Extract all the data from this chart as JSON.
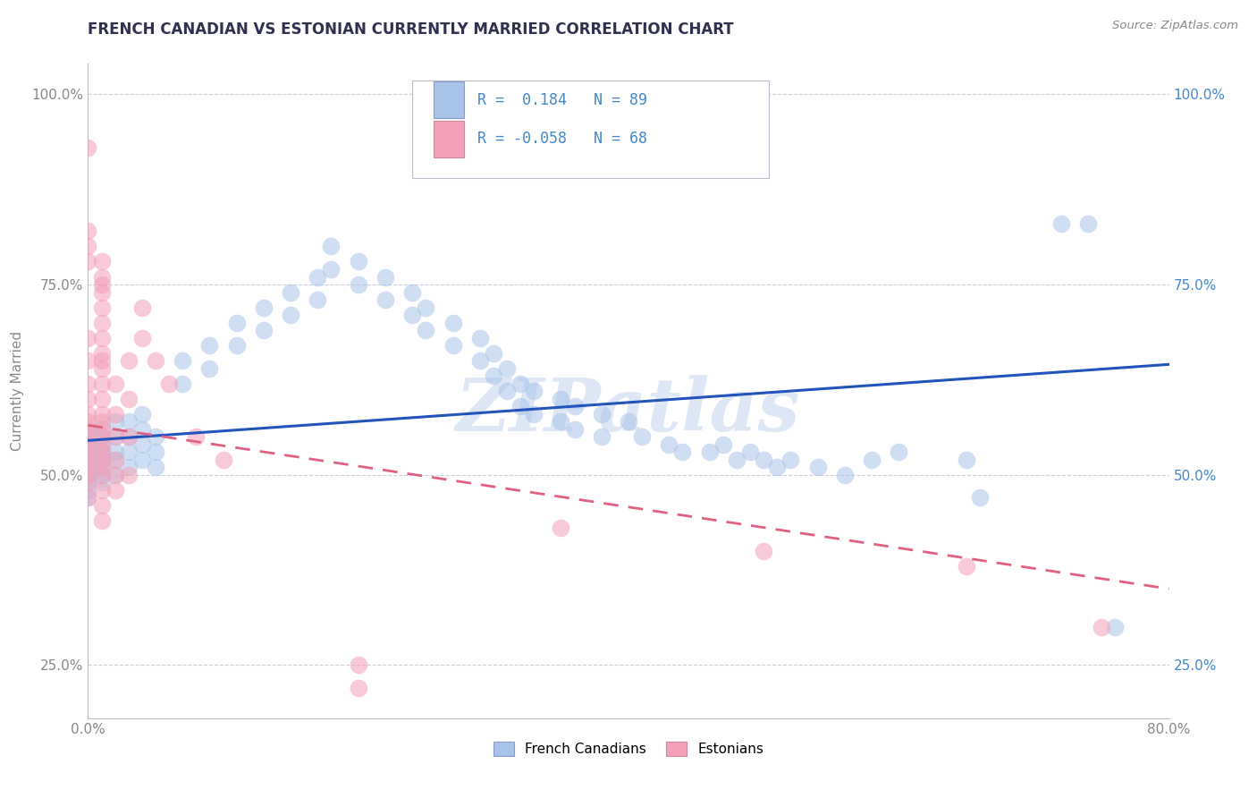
{
  "title": "FRENCH CANADIAN VS ESTONIAN CURRENTLY MARRIED CORRELATION CHART",
  "source_text": "Source: ZipAtlas.com",
  "ylabel": "Currently Married",
  "ytick_vals": [
    0.25,
    0.5,
    0.75,
    1.0
  ],
  "ytick_labels": [
    "25.0%",
    "50.0%",
    "75.0%",
    "100.0%"
  ],
  "xtick_vals": [
    0.0,
    0.8
  ],
  "xtick_labels": [
    "0.0%",
    "80.0%"
  ],
  "xmin": 0.0,
  "xmax": 0.8,
  "ymin": 0.18,
  "ymax": 1.04,
  "blue_fill": "#a8c4e8",
  "pink_fill": "#f4a0b8",
  "blue_line_color": "#2255bb",
  "pink_line_color": "#e06080",
  "legend_text_color": "#4488cc",
  "watermark": "ZIPatlas",
  "watermark_color": "#c8d8f0",
  "grid_color": "#ccccdd",
  "title_color": "#303050",
  "axis_color": "#888888",
  "blue_points": [
    [
      0.0,
      0.56
    ],
    [
      0.0,
      0.55
    ],
    [
      0.0,
      0.54
    ],
    [
      0.0,
      0.53
    ],
    [
      0.0,
      0.52
    ],
    [
      0.0,
      0.51
    ],
    [
      0.0,
      0.5
    ],
    [
      0.0,
      0.49
    ],
    [
      0.0,
      0.48
    ],
    [
      0.0,
      0.47
    ],
    [
      0.01,
      0.56
    ],
    [
      0.01,
      0.55
    ],
    [
      0.01,
      0.54
    ],
    [
      0.01,
      0.53
    ],
    [
      0.01,
      0.52
    ],
    [
      0.01,
      0.51
    ],
    [
      0.01,
      0.5
    ],
    [
      0.01,
      0.49
    ],
    [
      0.02,
      0.57
    ],
    [
      0.02,
      0.55
    ],
    [
      0.02,
      0.53
    ],
    [
      0.02,
      0.52
    ],
    [
      0.02,
      0.5
    ],
    [
      0.03,
      0.57
    ],
    [
      0.03,
      0.55
    ],
    [
      0.03,
      0.53
    ],
    [
      0.03,
      0.51
    ],
    [
      0.04,
      0.58
    ],
    [
      0.04,
      0.56
    ],
    [
      0.04,
      0.54
    ],
    [
      0.04,
      0.52
    ],
    [
      0.05,
      0.55
    ],
    [
      0.05,
      0.53
    ],
    [
      0.05,
      0.51
    ],
    [
      0.07,
      0.65
    ],
    [
      0.07,
      0.62
    ],
    [
      0.09,
      0.67
    ],
    [
      0.09,
      0.64
    ],
    [
      0.11,
      0.7
    ],
    [
      0.11,
      0.67
    ],
    [
      0.13,
      0.72
    ],
    [
      0.13,
      0.69
    ],
    [
      0.15,
      0.74
    ],
    [
      0.15,
      0.71
    ],
    [
      0.17,
      0.76
    ],
    [
      0.17,
      0.73
    ],
    [
      0.18,
      0.8
    ],
    [
      0.18,
      0.77
    ],
    [
      0.2,
      0.78
    ],
    [
      0.2,
      0.75
    ],
    [
      0.22,
      0.76
    ],
    [
      0.22,
      0.73
    ],
    [
      0.24,
      0.74
    ],
    [
      0.24,
      0.71
    ],
    [
      0.25,
      0.72
    ],
    [
      0.25,
      0.69
    ],
    [
      0.27,
      0.7
    ],
    [
      0.27,
      0.67
    ],
    [
      0.29,
      0.68
    ],
    [
      0.29,
      0.65
    ],
    [
      0.3,
      0.66
    ],
    [
      0.3,
      0.63
    ],
    [
      0.31,
      0.64
    ],
    [
      0.31,
      0.61
    ],
    [
      0.32,
      0.62
    ],
    [
      0.32,
      0.59
    ],
    [
      0.33,
      0.61
    ],
    [
      0.33,
      0.58
    ],
    [
      0.35,
      0.6
    ],
    [
      0.35,
      0.57
    ],
    [
      0.36,
      0.59
    ],
    [
      0.36,
      0.56
    ],
    [
      0.38,
      0.58
    ],
    [
      0.38,
      0.55
    ],
    [
      0.4,
      0.57
    ],
    [
      0.41,
      0.55
    ],
    [
      0.43,
      0.54
    ],
    [
      0.44,
      0.53
    ],
    [
      0.46,
      0.53
    ],
    [
      0.47,
      0.54
    ],
    [
      0.48,
      0.52
    ],
    [
      0.49,
      0.53
    ],
    [
      0.5,
      0.52
    ],
    [
      0.51,
      0.51
    ],
    [
      0.52,
      0.52
    ],
    [
      0.54,
      0.51
    ],
    [
      0.56,
      0.5
    ],
    [
      0.58,
      0.52
    ],
    [
      0.6,
      0.53
    ],
    [
      0.65,
      0.52
    ],
    [
      0.66,
      0.47
    ],
    [
      0.72,
      0.83
    ],
    [
      0.74,
      0.83
    ],
    [
      0.76,
      0.3
    ]
  ],
  "pink_points": [
    [
      0.0,
      0.93
    ],
    [
      0.0,
      0.82
    ],
    [
      0.0,
      0.8
    ],
    [
      0.0,
      0.78
    ],
    [
      0.01,
      0.78
    ],
    [
      0.01,
      0.76
    ],
    [
      0.01,
      0.75
    ],
    [
      0.01,
      0.74
    ],
    [
      0.01,
      0.72
    ],
    [
      0.01,
      0.7
    ],
    [
      0.0,
      0.68
    ],
    [
      0.01,
      0.68
    ],
    [
      0.01,
      0.66
    ],
    [
      0.0,
      0.65
    ],
    [
      0.01,
      0.65
    ],
    [
      0.01,
      0.64
    ],
    [
      0.01,
      0.62
    ],
    [
      0.0,
      0.62
    ],
    [
      0.01,
      0.6
    ],
    [
      0.0,
      0.6
    ],
    [
      0.0,
      0.58
    ],
    [
      0.01,
      0.58
    ],
    [
      0.0,
      0.57
    ],
    [
      0.01,
      0.57
    ],
    [
      0.0,
      0.56
    ],
    [
      0.01,
      0.56
    ],
    [
      0.0,
      0.55
    ],
    [
      0.01,
      0.55
    ],
    [
      0.0,
      0.54
    ],
    [
      0.01,
      0.54
    ],
    [
      0.0,
      0.53
    ],
    [
      0.01,
      0.53
    ],
    [
      0.0,
      0.52
    ],
    [
      0.01,
      0.52
    ],
    [
      0.0,
      0.51
    ],
    [
      0.01,
      0.51
    ],
    [
      0.0,
      0.5
    ],
    [
      0.01,
      0.5
    ],
    [
      0.0,
      0.49
    ],
    [
      0.01,
      0.48
    ],
    [
      0.0,
      0.47
    ],
    [
      0.01,
      0.46
    ],
    [
      0.01,
      0.44
    ],
    [
      0.02,
      0.62
    ],
    [
      0.02,
      0.58
    ],
    [
      0.02,
      0.55
    ],
    [
      0.02,
      0.52
    ],
    [
      0.02,
      0.5
    ],
    [
      0.02,
      0.48
    ],
    [
      0.03,
      0.65
    ],
    [
      0.03,
      0.6
    ],
    [
      0.03,
      0.55
    ],
    [
      0.03,
      0.5
    ],
    [
      0.04,
      0.72
    ],
    [
      0.04,
      0.68
    ],
    [
      0.05,
      0.65
    ],
    [
      0.06,
      0.62
    ],
    [
      0.08,
      0.55
    ],
    [
      0.1,
      0.52
    ],
    [
      0.2,
      0.25
    ],
    [
      0.2,
      0.22
    ],
    [
      0.35,
      0.43
    ],
    [
      0.5,
      0.4
    ],
    [
      0.65,
      0.38
    ],
    [
      0.75,
      0.3
    ]
  ],
  "blue_line_x": [
    0.0,
    0.8
  ],
  "blue_line_y": [
    0.545,
    0.645
  ],
  "pink_line_x": [
    0.0,
    0.8
  ],
  "pink_line_y": [
    0.565,
    0.35
  ]
}
